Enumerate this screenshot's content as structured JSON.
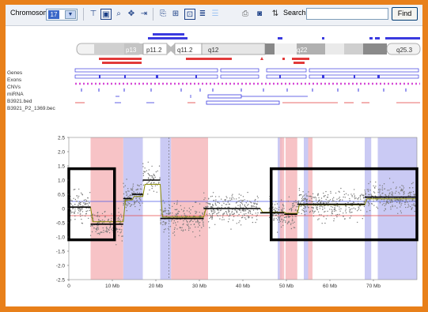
{
  "toolbar": {
    "chromosome_label": "Chromosome",
    "chromosome_value": "17",
    "search_label": "Search:",
    "search_value": "",
    "find_label": "Find"
  },
  "ideogram": {
    "bands": [
      "p13",
      "p11.2",
      "q11.2",
      "q12",
      "q22",
      "q25.3"
    ]
  },
  "tracks": [
    "Genes",
    "Exons",
    "CNVs",
    "miRNA",
    "B3921.bed",
    "B3921_P2_1369.bec"
  ],
  "colors": {
    "frame": "#e8801a",
    "gain_shade": "#b8b8f0",
    "loss_shade": "#f6b8bc",
    "segment": "#000000",
    "smooth_line": "#8b8b00",
    "upper_threshold": "#4a5ae6",
    "lower_threshold": "#e64a4a",
    "highlight_box": "#000000"
  },
  "chart_data": {
    "type": "scatter",
    "xlabel": "",
    "ylabel": "",
    "xlim": [
      0,
      80
    ],
    "ylim": [
      -2.5,
      2.5
    ],
    "x_ticks": [
      "0",
      "10 Mb",
      "20 Mb",
      "30 Mb",
      "40 Mb",
      "50 Mb",
      "60 Mb",
      "70 Mb"
    ],
    "y_ticks": [
      "2.5",
      "2.0",
      "1.5",
      "1.0",
      "0.5",
      "0",
      "-0.5",
      "-1.0",
      "-1.5",
      "-2.0",
      "-2.5"
    ],
    "thresholds": {
      "upper": 0.25,
      "lower": -0.25
    },
    "gain_regions": [
      [
        12.5,
        17
      ],
      [
        21,
        23.5
      ],
      [
        48,
        49
      ],
      [
        54,
        55
      ],
      [
        68,
        69.5
      ],
      [
        71,
        80
      ]
    ],
    "loss_regions": [
      [
        5,
        12.5
      ],
      [
        23.5,
        32
      ],
      [
        48.5,
        49.5
      ],
      [
        49.8,
        52.5
      ],
      [
        55,
        56
      ]
    ],
    "segments": [
      {
        "x": [
          0,
          5
        ],
        "y": 0.05
      },
      {
        "x": [
          5,
          12.5
        ],
        "y": -0.55
      },
      {
        "x": [
          12.5,
          14.5
        ],
        "y": 0.35
      },
      {
        "x": [
          14.5,
          17
        ],
        "y": 0.5
      },
      {
        "x": [
          17,
          21
        ],
        "y": 1.0
      },
      {
        "x": [
          21,
          31
        ],
        "y": -0.35
      },
      {
        "x": [
          31,
          44
        ],
        "y": 0.0
      },
      {
        "x": [
          44,
          49.5
        ],
        "y": -0.15
      },
      {
        "x": [
          49.5,
          52.5
        ],
        "y": -0.2
      },
      {
        "x": [
          52.5,
          68
        ],
        "y": 0.15
      },
      {
        "x": [
          68,
          80
        ],
        "y": 0.4
      }
    ],
    "highlight_boxes": [
      {
        "x": [
          0,
          10.5
        ],
        "y": [
          -1.1,
          1.4
        ]
      },
      {
        "x": [
          46.5,
          80
        ],
        "y": [
          -1.1,
          1.4
        ]
      }
    ]
  }
}
